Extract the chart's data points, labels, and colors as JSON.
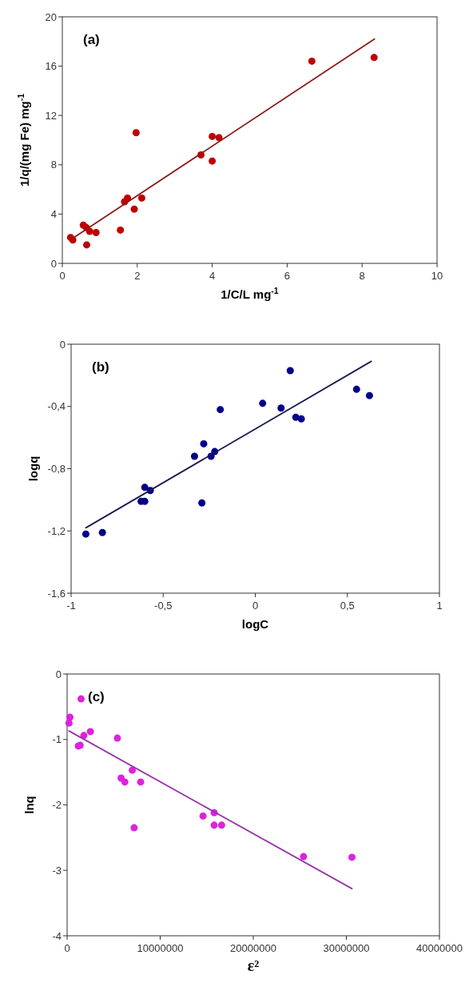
{
  "chart_data": [
    {
      "type": "scatter",
      "xlabel": "1/C/L mg$^{-1}$",
      "ylabel": "1/q/(mg Fe) mg$^{-1}$",
      "annotations": [
        "(a)"
      ],
      "xlim": [
        0,
        10
      ],
      "xticks": [
        0,
        2,
        4,
        6,
        8,
        10
      ],
      "ylim": [
        0,
        20
      ],
      "yticks": [
        0,
        4,
        8,
        12,
        16,
        20
      ],
      "grid": false,
      "series": [
        {
          "marker": "circle",
          "color": "#c00000",
          "x": [
            0.22,
            0.28,
            0.56,
            0.64,
            0.65,
            0.73,
            0.9,
            1.55,
            1.66,
            1.74,
            1.92,
            1.97,
            2.12,
            3.7,
            4.0,
            4.0,
            4.18,
            6.66,
            8.32
          ],
          "values": [
            2.1,
            1.9,
            3.1,
            2.9,
            1.5,
            2.6,
            2.5,
            2.7,
            5.0,
            5.3,
            4.4,
            10.6,
            5.3,
            8.8,
            10.3,
            8.3,
            10.2,
            16.4,
            16.7
          ]
        },
        {
          "type": "line",
          "color": "#8b1a1a",
          "x": [
            0.26,
            8.33
          ],
          "values": [
            2.0,
            18.2
          ]
        }
      ]
    },
    {
      "type": "scatter",
      "xlabel": "logC",
      "ylabel": "logq",
      "annotations": [
        "(b)"
      ],
      "xlim": [
        -1,
        1
      ],
      "xticks": [
        {
          "value": -1,
          "label": "-1"
        },
        {
          "value": -0.5,
          "label": "-0,5"
        },
        {
          "value": 0,
          "label": "0"
        },
        {
          "value": 0.5,
          "label": "0,5"
        },
        {
          "value": 1,
          "label": "1"
        }
      ],
      "ylim": [
        -1.6,
        0
      ],
      "yticks": [
        {
          "value": -1.6,
          "label": "-1,6"
        },
        {
          "value": -1.2,
          "label": "-1,2"
        },
        {
          "value": -0.8,
          "label": "-0,8"
        },
        {
          "value": -0.4,
          "label": "-0,4"
        },
        {
          "value": 0,
          "label": "0"
        }
      ],
      "grid": false,
      "series": [
        {
          "marker": "circle",
          "color": "#00008b",
          "x": [
            -0.92,
            -0.83,
            -0.62,
            -0.6,
            -0.6,
            -0.57,
            -0.33,
            -0.28,
            -0.29,
            -0.24,
            -0.22,
            -0.19,
            0.04,
            0.14,
            0.19,
            0.22,
            0.25,
            0.55,
            0.62
          ],
          "values": [
            -1.22,
            -1.21,
            -1.01,
            -1.01,
            -0.92,
            -0.94,
            -0.72,
            -0.64,
            -1.02,
            -0.72,
            -0.69,
            -0.42,
            -0.38,
            -0.41,
            -0.17,
            -0.47,
            -0.48,
            -0.29,
            -0.33
          ]
        },
        {
          "type": "line",
          "color": "#1a1a50",
          "x": [
            -0.92,
            0.63
          ],
          "values": [
            -1.18,
            -0.11
          ]
        }
      ]
    },
    {
      "type": "scatter",
      "xlabel": "ε²",
      "ylabel": "lnq",
      "annotations": [
        "(c)"
      ],
      "xlim": [
        0,
        40000000
      ],
      "xticks": [
        0,
        10000000,
        20000000,
        30000000,
        40000000
      ],
      "ylim": [
        -4,
        0
      ],
      "yticks": [
        -4,
        -3,
        -2,
        -1,
        0
      ],
      "grid": false,
      "series": [
        {
          "marker": "circle",
          "color": "#dd22dd",
          "x": [
            300000,
            200000,
            1500000,
            1200000,
            1400000,
            1800000,
            2500000,
            5400000,
            5800000,
            6200000,
            7000000,
            7900000,
            7200000,
            14600000,
            15800000,
            15800000,
            16600000,
            25400000,
            30600000
          ],
          "values": [
            -0.66,
            -0.75,
            -0.38,
            -1.1,
            -1.09,
            -0.94,
            -0.88,
            -0.98,
            -1.59,
            -1.65,
            -1.47,
            -1.65,
            -2.35,
            -2.17,
            -2.12,
            -2.31,
            -2.31,
            -2.79,
            -2.8
          ]
        },
        {
          "type": "line",
          "color": "#9933aa",
          "x": [
            200000,
            30600000
          ],
          "values": [
            -0.87,
            -3.28
          ]
        }
      ]
    }
  ]
}
